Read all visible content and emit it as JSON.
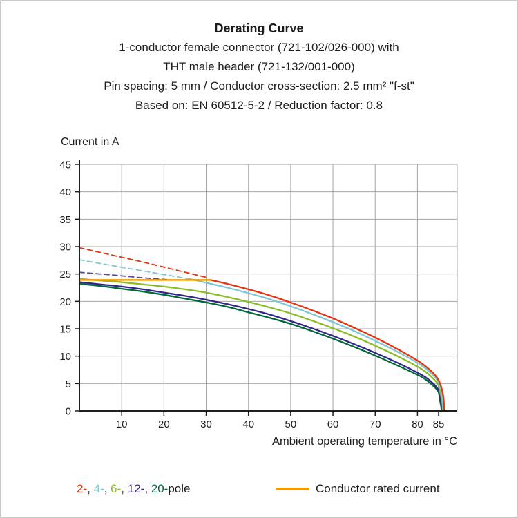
{
  "header": {
    "title": "Derating Curve",
    "lines": [
      "1-conductor female connector (721-102/026-000) with",
      "THT male header (721-132/001-000)",
      "Pin spacing: 5 mm / Conductor cross-section: 2.5 mm² \"f-st\"",
      "Based on: EN 60512-5-2 / Reduction factor: 0.8"
    ]
  },
  "chart_data": {
    "type": "line",
    "title": "Derating Curve",
    "ylabel": "Current in A",
    "xlabel": "Ambient operating temperature in °C",
    "xlim": [
      0,
      89
    ],
    "ylim": [
      0,
      45
    ],
    "xticks": [
      10,
      20,
      30,
      40,
      50,
      60,
      70,
      80,
      85
    ],
    "yticks": [
      0,
      5,
      10,
      15,
      20,
      25,
      30,
      35,
      40,
      45
    ],
    "grid": true,
    "grid_color": "#a6a6a6",
    "axis_color": "#1d1d1b",
    "legend_position": "bottom",
    "series": [
      {
        "name": "12-pole-theoretical",
        "color": "#5a4796",
        "style": "dashed",
        "width": 1.8,
        "points": [
          [
            0,
            25.3
          ],
          [
            8,
            24.8
          ],
          [
            15,
            24.3
          ],
          [
            22,
            23.9
          ]
        ]
      },
      {
        "name": "4-pole-theoretical",
        "color": "#7fc7d4",
        "style": "dashed",
        "width": 1.8,
        "points": [
          [
            0,
            27.6
          ],
          [
            8,
            26.5
          ],
          [
            17,
            25.3
          ],
          [
            26,
            24.1
          ]
        ]
      },
      {
        "name": "2-pole-theoretical",
        "color": "#e63312",
        "style": "dashed",
        "width": 1.8,
        "points": [
          [
            0,
            29.8
          ],
          [
            8,
            28.4
          ],
          [
            16,
            27.0
          ],
          [
            24,
            25.5
          ],
          [
            30,
            24.4
          ]
        ]
      },
      {
        "name": "20-pole",
        "color": "#00693c",
        "style": "solid",
        "width": 2.3,
        "points": [
          [
            0,
            23.2
          ],
          [
            5,
            22.8
          ],
          [
            10,
            22.3
          ],
          [
            15,
            21.8
          ],
          [
            20,
            21.2
          ],
          [
            25,
            20.5
          ],
          [
            30,
            19.8
          ],
          [
            35,
            19.0
          ],
          [
            40,
            18.0
          ],
          [
            45,
            17.0
          ],
          [
            50,
            15.9
          ],
          [
            55,
            14.6
          ],
          [
            60,
            13.2
          ],
          [
            65,
            11.7
          ],
          [
            70,
            10.1
          ],
          [
            75,
            8.4
          ],
          [
            80,
            6.6
          ],
          [
            82,
            5.7
          ],
          [
            84,
            4.4
          ],
          [
            85,
            3.4
          ],
          [
            85.3,
            2.0
          ],
          [
            85.6,
            0.8
          ],
          [
            85.7,
            0
          ]
        ]
      },
      {
        "name": "12-pole",
        "color": "#312885",
        "style": "solid",
        "width": 2.3,
        "points": [
          [
            0,
            23.5
          ],
          [
            5,
            23.1
          ],
          [
            10,
            22.7
          ],
          [
            15,
            22.2
          ],
          [
            20,
            21.6
          ],
          [
            25,
            21.0
          ],
          [
            30,
            20.3
          ],
          [
            35,
            19.5
          ],
          [
            40,
            18.6
          ],
          [
            45,
            17.6
          ],
          [
            50,
            16.4
          ],
          [
            55,
            15.1
          ],
          [
            60,
            13.7
          ],
          [
            65,
            12.2
          ],
          [
            70,
            10.6
          ],
          [
            75,
            8.9
          ],
          [
            80,
            7.0
          ],
          [
            82,
            6.1
          ],
          [
            84,
            4.8
          ],
          [
            85,
            3.8
          ],
          [
            85.4,
            2.4
          ],
          [
            85.7,
            1.0
          ],
          [
            85.8,
            0
          ]
        ]
      },
      {
        "name": "6-pole",
        "color": "#8abd24",
        "style": "solid",
        "width": 2.3,
        "points": [
          [
            0,
            24.1
          ],
          [
            5,
            23.8
          ],
          [
            10,
            23.5
          ],
          [
            15,
            23.1
          ],
          [
            20,
            22.7
          ],
          [
            25,
            22.2
          ],
          [
            30,
            21.6
          ],
          [
            35,
            20.8
          ],
          [
            40,
            19.9
          ],
          [
            45,
            18.9
          ],
          [
            50,
            17.8
          ],
          [
            55,
            16.5
          ],
          [
            60,
            15.1
          ],
          [
            65,
            13.6
          ],
          [
            70,
            11.9
          ],
          [
            75,
            10.1
          ],
          [
            80,
            8.1
          ],
          [
            82,
            7.1
          ],
          [
            84,
            5.7
          ],
          [
            85,
            4.6
          ],
          [
            85.5,
            3.0
          ],
          [
            85.9,
            1.4
          ],
          [
            86,
            0
          ]
        ]
      },
      {
        "name": "4-pole",
        "color": "#7fc7d4",
        "style": "solid",
        "width": 2.3,
        "points": [
          [
            26,
            24.1
          ],
          [
            30,
            23.4
          ],
          [
            35,
            22.5
          ],
          [
            40,
            21.5
          ],
          [
            45,
            20.4
          ],
          [
            50,
            19.1
          ],
          [
            55,
            17.7
          ],
          [
            60,
            16.2
          ],
          [
            65,
            14.6
          ],
          [
            70,
            12.8
          ],
          [
            75,
            10.9
          ],
          [
            80,
            8.8
          ],
          [
            82,
            7.7
          ],
          [
            84,
            6.3
          ],
          [
            85,
            5.2
          ],
          [
            85.6,
            3.6
          ],
          [
            86,
            1.8
          ],
          [
            86.1,
            0
          ]
        ]
      },
      {
        "name": "2-pole",
        "color": "#e63312",
        "style": "solid",
        "width": 2.3,
        "points": [
          [
            31,
            23.9
          ],
          [
            35,
            23.2
          ],
          [
            40,
            22.2
          ],
          [
            45,
            21.1
          ],
          [
            50,
            19.8
          ],
          [
            55,
            18.4
          ],
          [
            60,
            16.9
          ],
          [
            65,
            15.2
          ],
          [
            70,
            13.4
          ],
          [
            75,
            11.4
          ],
          [
            80,
            9.2
          ],
          [
            82,
            8.1
          ],
          [
            84,
            6.7
          ],
          [
            85,
            5.6
          ],
          [
            85.7,
            4.2
          ],
          [
            86.2,
            2.2
          ],
          [
            86.3,
            0
          ]
        ]
      },
      {
        "name": "conductor-rated-current",
        "color": "#f59b00",
        "style": "solid",
        "width": 2.5,
        "points": [
          [
            0,
            23.9
          ],
          [
            31,
            23.9
          ]
        ]
      }
    ]
  },
  "legend": {
    "pole_items": [
      {
        "label": "2-",
        "color": "#e63312"
      },
      {
        "label": "4-",
        "color": "#7fc7d4"
      },
      {
        "label": "6-",
        "color": "#8abd24"
      },
      {
        "label": "12-",
        "color": "#312885"
      },
      {
        "label": "20-",
        "color": "#00693c"
      }
    ],
    "separator": ", ",
    "suffix": "pole",
    "rated": {
      "label": "Conductor rated current",
      "color": "#f59b00"
    }
  }
}
